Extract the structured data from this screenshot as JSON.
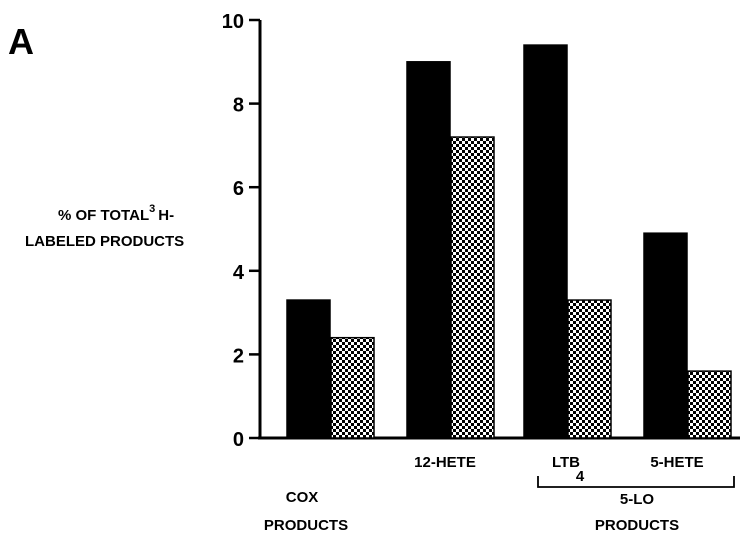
{
  "panel_label": "A",
  "chart_data": {
    "type": "bar",
    "ylabel_line1": "% OF TOTAL",
    "ylabel_sup": "3",
    "ylabel_line1_suffix": "H-",
    "ylabel_line2": "LABELED PRODUCTS",
    "ylim": [
      0,
      10
    ],
    "yticks": [
      "0",
      "2",
      "4",
      "6",
      "8",
      "10"
    ],
    "categories": [
      {
        "line1": "COX",
        "line2": "PRODUCTS"
      },
      {
        "line1": "12-HETE",
        "line2": ""
      },
      {
        "line1": "LTB",
        "sub": "4",
        "line2": ""
      },
      {
        "line1": "5-HETE",
        "line2": ""
      }
    ],
    "group_bracket": {
      "line1": "5-LO",
      "line2": "PRODUCTS"
    },
    "series": [
      {
        "fill": "solid-black",
        "values": [
          3.3,
          9.0,
          9.4,
          4.9
        ]
      },
      {
        "fill": "checkered",
        "values": [
          2.4,
          7.2,
          3.3,
          1.6
        ]
      }
    ],
    "grid": false,
    "legend": "none"
  }
}
